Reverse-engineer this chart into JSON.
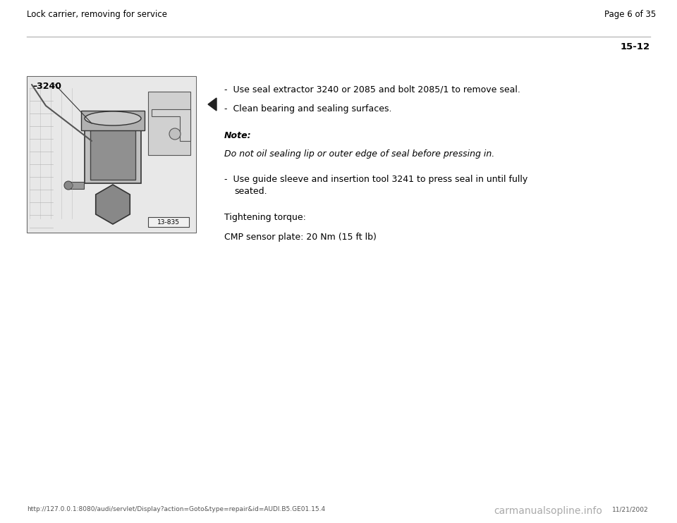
{
  "background_color": "#ffffff",
  "header_left": "Lock carrier, removing for service",
  "header_right": "Page 6 of 35",
  "section_number": "15-12",
  "footer_url": "http://127.0.0.1:8080/audi/servlet/Display?action=Goto&type=repair&id=AUDI.B5.GE01.15.4",
  "footer_date": "11/21/2002",
  "footer_watermark": "carmanualsopline.info",
  "bullet1": "Use seal extractor 3240 or 2085 and bolt 2085/1 to remove seal.",
  "bullet2": "Clean bearing and sealing surfaces.",
  "note_label": "Note:",
  "note_text": "Do not oil sealing lip or outer edge of seal before pressing in.",
  "bullet3_line1": "Use guide sleeve and insertion tool 3241 to press seal in until fully",
  "bullet3_line2": "    seated.",
  "tightening_label": "Tightening torque:",
  "torque_value": "CMP sensor plate: 20 Nm (15 ft lb)",
  "header_line_color": "#bbbbbb",
  "text_color": "#000000",
  "gray_text": "#555555",
  "font_size_header": 8.5,
  "font_size_body": 9,
  "font_size_section": 9.5,
  "font_size_footer": 6.5,
  "font_size_watermark": 10
}
